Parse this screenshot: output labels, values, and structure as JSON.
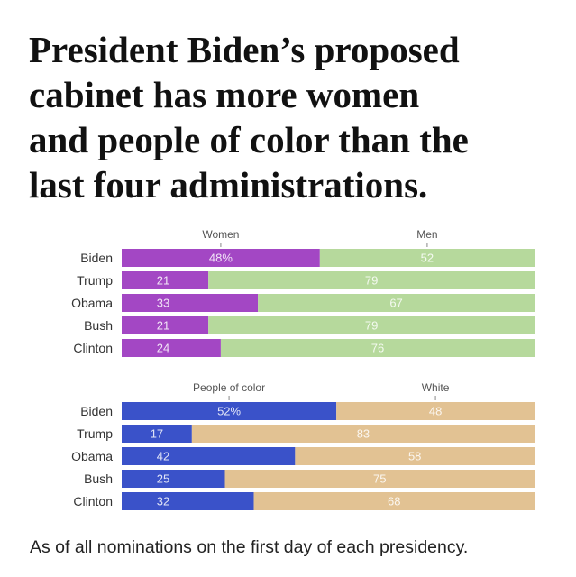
{
  "title_lines": [
    "President Biden’s proposed",
    "cabinet has more women",
    "and people of color than the",
    "last four administrations."
  ],
  "footnote": "As of all nominations on the first day of each presidency.",
  "chart_data": [
    {
      "type": "bar",
      "stacked": true,
      "orientation": "horizontal",
      "categories": [
        "Biden",
        "Trump",
        "Obama",
        "Bush",
        "Clinton"
      ],
      "series": [
        {
          "name": "Women",
          "values": [
            48,
            21,
            33,
            21,
            24
          ],
          "labels": [
            "48%",
            "21",
            "33",
            "21",
            "24"
          ],
          "color": "#a347c4"
        },
        {
          "name": "Men",
          "values": [
            52,
            79,
            67,
            79,
            76
          ],
          "labels": [
            "52",
            "79",
            "67",
            "79",
            "76"
          ],
          "color": "#b6d99c"
        }
      ],
      "xlim": [
        0,
        100
      ]
    },
    {
      "type": "bar",
      "stacked": true,
      "orientation": "horizontal",
      "categories": [
        "Biden",
        "Trump",
        "Obama",
        "Bush",
        "Clinton"
      ],
      "series": [
        {
          "name": "People of color",
          "values": [
            52,
            17,
            42,
            25,
            32
          ],
          "labels": [
            "52%",
            "17",
            "42",
            "25",
            "32"
          ],
          "color": "#3a52c9"
        },
        {
          "name": "White",
          "values": [
            48,
            83,
            58,
            75,
            68
          ],
          "labels": [
            "48",
            "83",
            "58",
            "75",
            "68"
          ],
          "color": "#e2c293"
        }
      ],
      "xlim": [
        0,
        100
      ]
    }
  ]
}
